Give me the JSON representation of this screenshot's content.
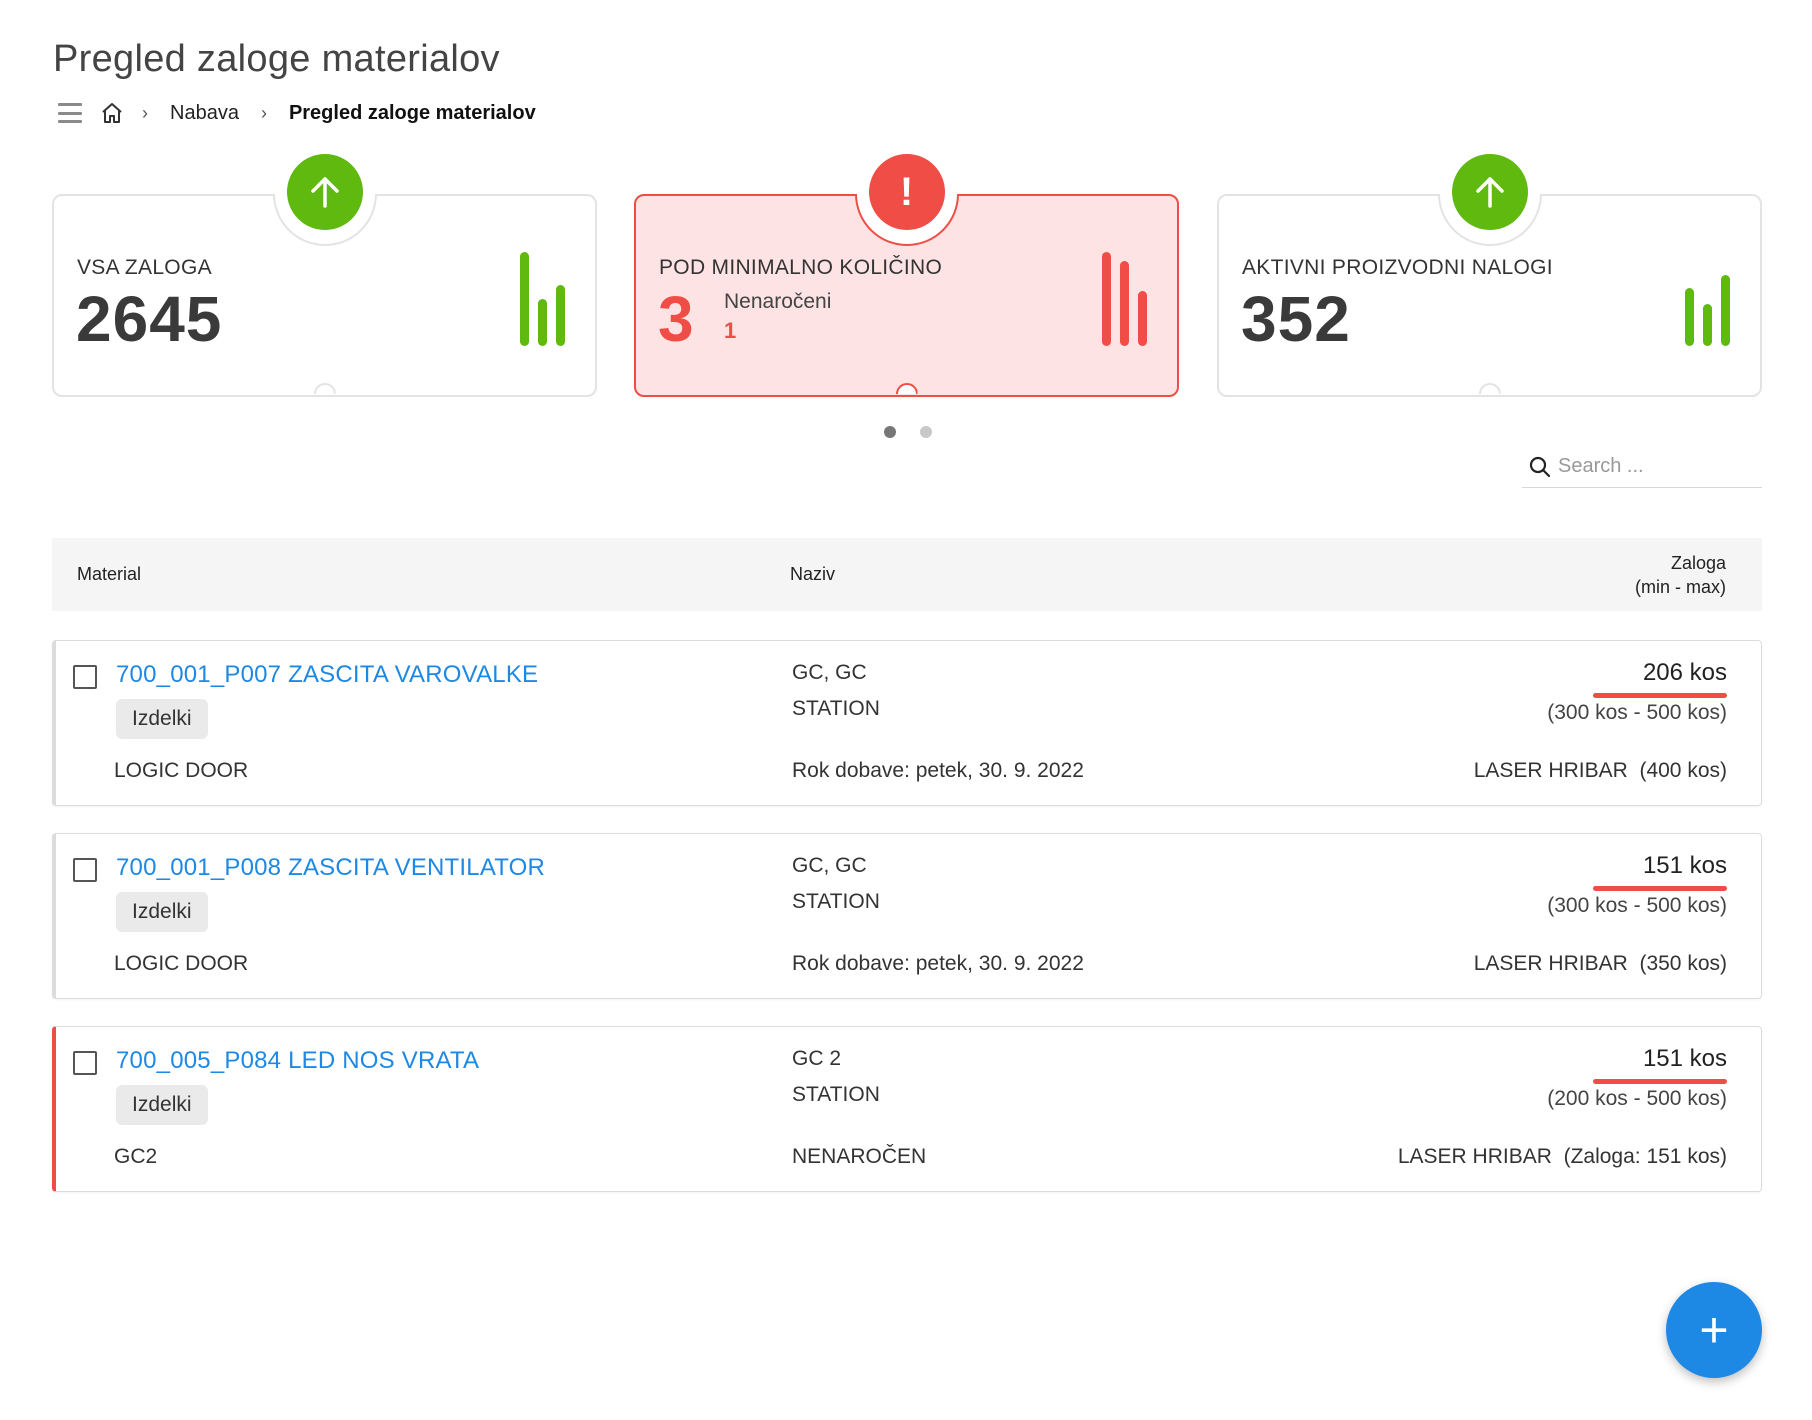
{
  "page": {
    "title": "Pregled zaloge materialov"
  },
  "breadcrumb": {
    "parent": "Nabava",
    "current": "Pregled zaloge materialov",
    "separator": "›"
  },
  "cards": [
    {
      "label": "VSA ZALOGA",
      "value": "2645",
      "status": "up",
      "color": "#5fb90f",
      "bars": [
        1.0,
        0.5,
        0.65
      ]
    },
    {
      "label": "POD MINIMALNO KOLIČINO",
      "value": "3",
      "sub_label": "Nenaročeni",
      "sub_value": "1",
      "badge_text": "!",
      "status": "alert",
      "color": "#ef4d45",
      "bars": [
        1.0,
        0.9,
        0.58
      ]
    },
    {
      "label": "AKTIVNI PROIZVODNI NALOGI",
      "value": "352",
      "status": "up",
      "color": "#5fb90f",
      "bars": [
        0.62,
        0.45,
        0.75
      ]
    }
  ],
  "pager": {
    "count": 2,
    "active": 0
  },
  "search": {
    "placeholder": "Search ..."
  },
  "table": {
    "headers": {
      "material": "Material",
      "naziv": "Naziv",
      "zaloga_line1": "Zaloga",
      "zaloga_line2": "(min - max)"
    },
    "rows": [
      {
        "code": "700_001_P007 ZASCITA VAROVALKE",
        "tag": "Izdelki",
        "group": "LOGIC DOOR",
        "naziv1": "GC, GC",
        "naziv2": "STATION",
        "naziv3": "Rok dobave: petek, 30. 9. 2022",
        "qty": "206 kos",
        "range": "(300 kos - 500 kos)",
        "supplier": "LASER HRIBAR  (400 kos)",
        "warn": false
      },
      {
        "code": "700_001_P008 ZASCITA VENTILATOR",
        "tag": "Izdelki",
        "group": "LOGIC DOOR",
        "naziv1": "GC, GC",
        "naziv2": "STATION",
        "naziv3": "Rok dobave: petek, 30. 9. 2022",
        "qty": "151 kos",
        "range": "(300 kos - 500 kos)",
        "supplier": "LASER HRIBAR  (350 kos)",
        "warn": false
      },
      {
        "code": "700_005_P084 LED NOS VRATA",
        "tag": "Izdelki",
        "group": "GC2",
        "naziv1": "GC 2",
        "naziv2": "STATION",
        "naziv3": "NENAROČEN",
        "qty": "151 kos",
        "range": "(200 kos - 500 kos)",
        "supplier": "LASER HRIBAR  (Zaloga: 151 kos)",
        "warn": true
      }
    ]
  },
  "fab": {
    "label": "+"
  },
  "icons": {
    "menu": "hamburger-icon",
    "home": "home-icon",
    "search": "search-icon",
    "up": "arrow-up-icon",
    "alert": "exclamation-icon",
    "bars": "bar-chart-icon",
    "add": "plus-icon"
  }
}
